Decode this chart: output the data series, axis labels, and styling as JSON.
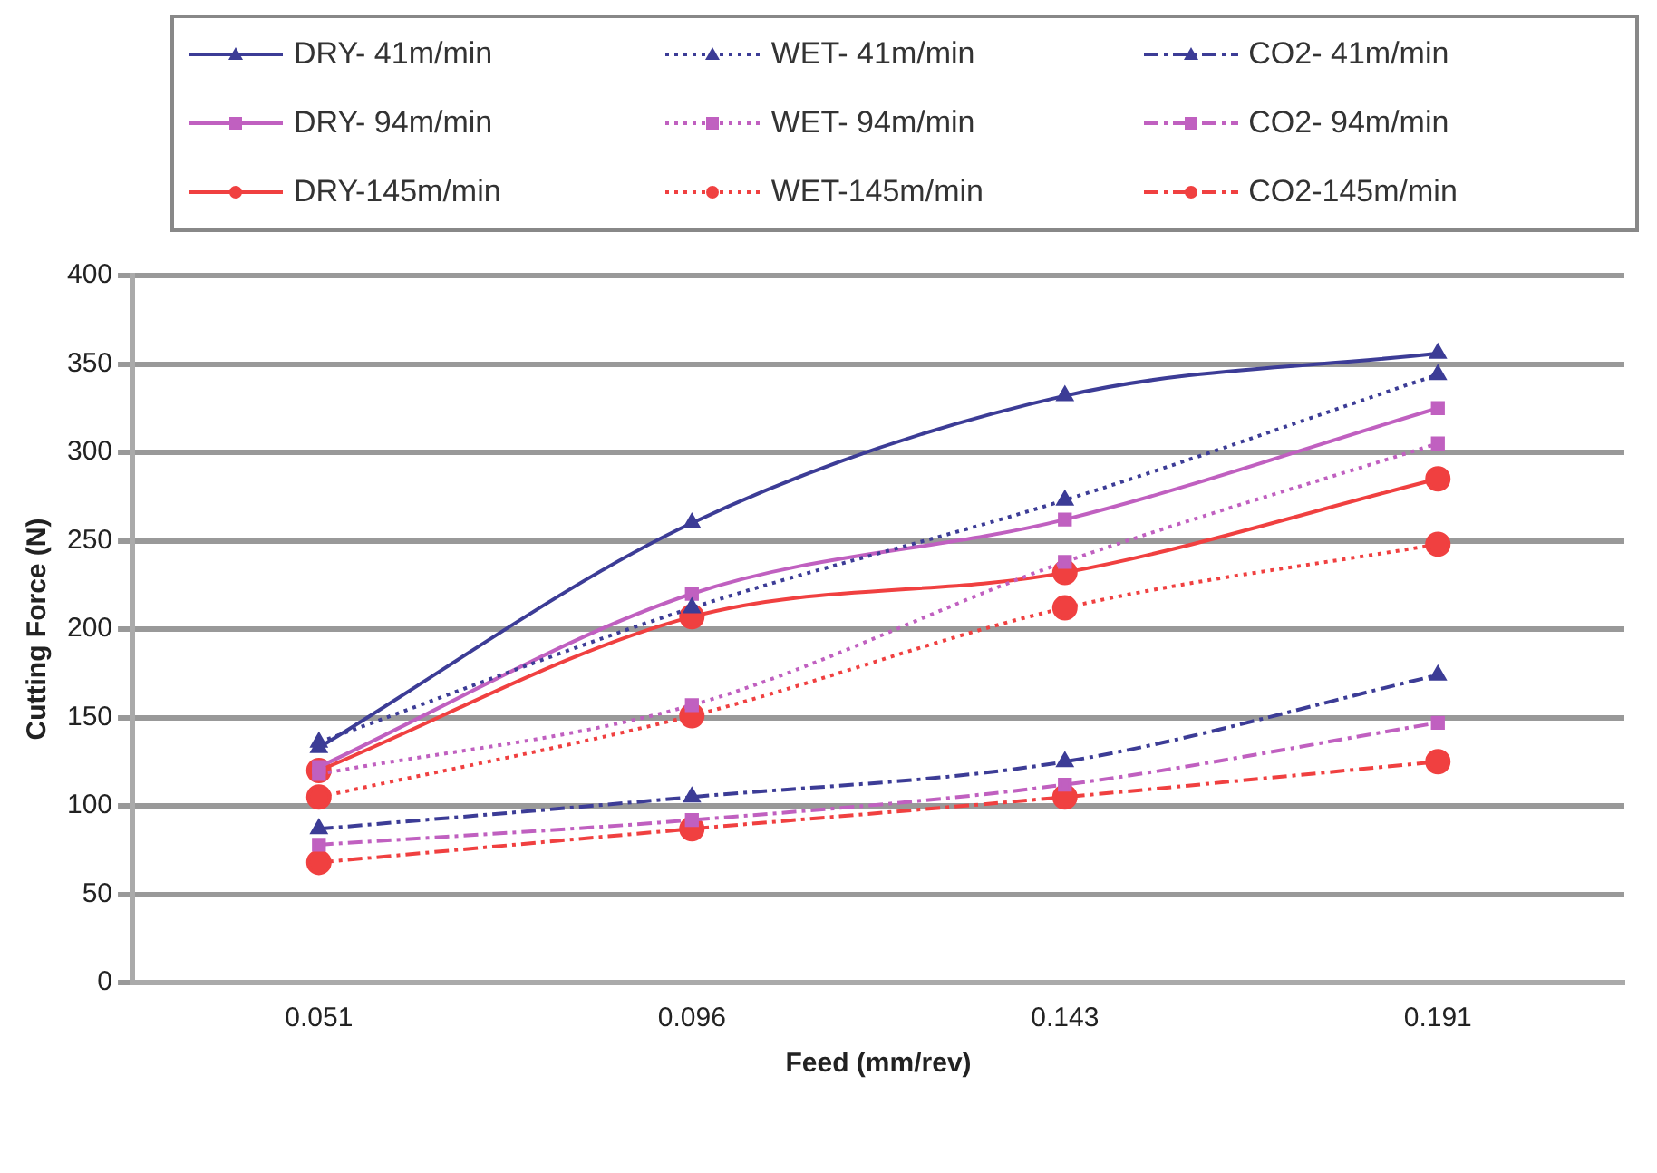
{
  "chart_data": {
    "type": "line",
    "xlabel": "Feed (mm/rev)",
    "ylabel": "Cutting Force (N)",
    "categories": [
      "0.051",
      "0.096",
      "0.143",
      "0.191"
    ],
    "ylim": [
      0,
      400
    ],
    "yticks": [
      0,
      50,
      100,
      150,
      200,
      250,
      300,
      350,
      400
    ],
    "grid": "y",
    "legend": "top",
    "series": [
      {
        "name": "DRY- 41m/min",
        "color": "#3c3c96",
        "marker": "triangle",
        "line_style": "solid",
        "values": [
          133,
          260,
          332,
          356
        ]
      },
      {
        "name": "WET- 41m/min",
        "color": "#3c3c96",
        "marker": "triangle",
        "line_style": "dotted",
        "values": [
          136,
          212,
          273,
          344
        ]
      },
      {
        "name": "CO2- 41m/min",
        "color": "#3c3c96",
        "marker": "triangle",
        "line_style": "dashed",
        "values": [
          87,
          105,
          125,
          174
        ]
      },
      {
        "name": "DRY- 94m/min",
        "color": "#c060c0",
        "marker": "square",
        "line_style": "solid",
        "values": [
          122,
          220,
          262,
          325
        ]
      },
      {
        "name": "WET- 94m/min",
        "color": "#c060c0",
        "marker": "square",
        "line_style": "dotted",
        "values": [
          118,
          157,
          238,
          305
        ]
      },
      {
        "name": "CO2- 94m/min",
        "color": "#c060c0",
        "marker": "square",
        "line_style": "dashed",
        "values": [
          78,
          92,
          112,
          147
        ]
      },
      {
        "name": "DRY-145m/min",
        "color": "#f04040",
        "marker": "circle",
        "line_style": "solid",
        "values": [
          120,
          207,
          232,
          285
        ]
      },
      {
        "name": "WET-145m/min",
        "color": "#f04040",
        "marker": "circle",
        "line_style": "dotted",
        "values": [
          105,
          151,
          212,
          248
        ]
      },
      {
        "name": "CO2-145m/min",
        "color": "#f04040",
        "marker": "circle",
        "line_style": "dashed",
        "values": [
          68,
          87,
          105,
          125
        ]
      }
    ]
  }
}
